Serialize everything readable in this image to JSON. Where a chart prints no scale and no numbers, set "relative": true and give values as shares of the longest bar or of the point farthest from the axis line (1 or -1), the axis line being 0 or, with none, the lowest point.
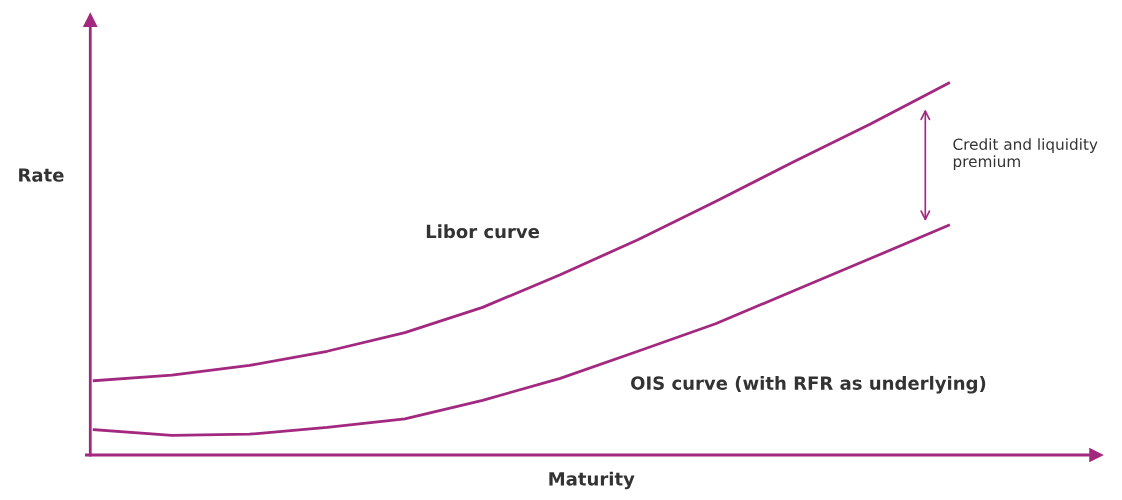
{
  "chart_data": {
    "type": "line",
    "relative": true,
    "xlabel": "Maturity",
    "ylabel": "Rate",
    "categories": [
      null,
      null,
      null,
      null,
      null,
      null,
      null,
      null,
      null,
      null,
      null,
      null
    ],
    "series": [
      {
        "name": "Libor curve",
        "color": "#a3287f",
        "values": [
          0.2,
          0.215,
          0.241,
          0.279,
          0.329,
          0.397,
          0.485,
          0.579,
          0.682,
          0.788,
          0.891,
          1.0
        ]
      },
      {
        "name": "OIS curve (with RFR as underlying)",
        "color": "#a3287f",
        "values": [
          0.068,
          0.053,
          0.056,
          0.074,
          0.097,
          0.147,
          0.206,
          0.279,
          0.353,
          0.441,
          0.529,
          0.618
        ]
      }
    ],
    "annotations": [
      "Credit and liquidity premium"
    ],
    "legend": false,
    "marker": "none",
    "line_style": "solid"
  }
}
